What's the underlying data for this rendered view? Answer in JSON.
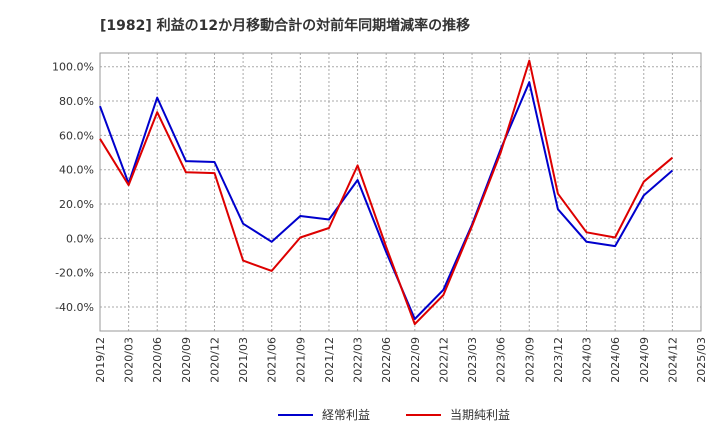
{
  "chart_data": {
    "type": "line",
    "title": "[1982]  利益の12か月移動合計の対前年同期増減率の推移",
    "xlabel": "",
    "ylabel": "",
    "x": [
      "2019/12",
      "2020/03",
      "2020/06",
      "2020/09",
      "2020/12",
      "2021/03",
      "2021/06",
      "2021/09",
      "2021/12",
      "2022/03",
      "2022/06",
      "2022/09",
      "2022/12",
      "2023/03",
      "2023/06",
      "2023/09",
      "2023/12",
      "2024/03",
      "2024/06",
      "2024/09",
      "2024/12",
      "2025/03"
    ],
    "yticks": [
      "100.0%",
      "80.0%",
      "60.0%",
      "40.0%",
      "20.0%",
      "0.0%",
      "-20.0%",
      "-40.0%"
    ],
    "ytick_values": [
      100,
      80,
      60,
      40,
      20,
      0,
      -20,
      -40
    ],
    "ylim": [
      -54,
      108
    ],
    "grid": true,
    "legend_position": "bottom",
    "series": [
      {
        "name": "経常利益",
        "color": "#0000cc",
        "values": [
          77,
          32,
          82,
          45,
          44.5,
          8.5,
          -2,
          13,
          11,
          34,
          -8,
          -47,
          -30,
          8,
          52,
          91,
          17,
          -2,
          -4.5,
          25,
          39.5,
          null
        ]
      },
      {
        "name": "当期純利益",
        "color": "#dd0000",
        "values": [
          58,
          31,
          73.5,
          38.5,
          38,
          -13,
          -19,
          0.5,
          6,
          42.5,
          -5,
          -50,
          -33,
          7,
          50,
          103.5,
          26,
          3.5,
          0.5,
          33,
          47,
          null
        ]
      }
    ]
  }
}
